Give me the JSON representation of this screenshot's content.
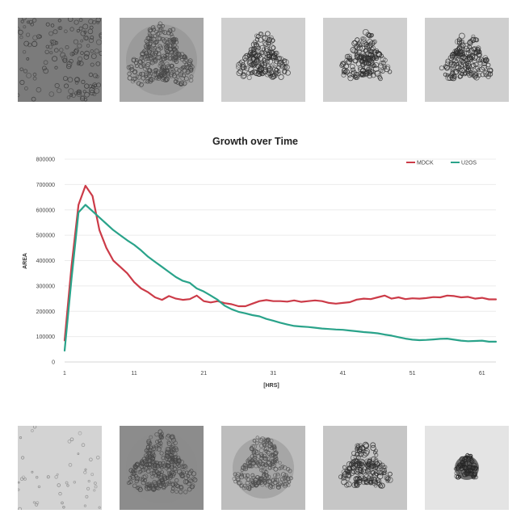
{
  "thumbnails": {
    "top": [
      {
        "icon": "scattered-cells-micrograph",
        "tone": "#7b7b7b"
      },
      {
        "icon": "dense-cell-disc-micrograph",
        "tone": "#a8a8a8"
      },
      {
        "icon": "cell-spheroid-micrograph",
        "tone": "#cfcfcf"
      },
      {
        "icon": "cell-spheroid-micrograph",
        "tone": "#cfcfcf"
      },
      {
        "icon": "cell-spheroid-micrograph",
        "tone": "#cfcfcf"
      }
    ],
    "bottom": [
      {
        "icon": "sparse-cells-micrograph",
        "tone": "#d3d3d3"
      },
      {
        "icon": "dense-cell-disc-micrograph",
        "tone": "#8c8c8c"
      },
      {
        "icon": "cell-disc-micrograph",
        "tone": "#bdbdbd"
      },
      {
        "icon": "cell-spheroid-micrograph",
        "tone": "#c6c6c6"
      },
      {
        "icon": "compact-spheroid-micrograph",
        "tone": "#e4e4e4"
      }
    ]
  },
  "chart_data": {
    "type": "line",
    "title": "Growth over Time",
    "xlabel": "[HRS]",
    "ylabel": "AREA",
    "xlim": [
      1,
      63
    ],
    "ylim": [
      0,
      800000
    ],
    "xticks": [
      1,
      11,
      21,
      31,
      41,
      51,
      61
    ],
    "yticks": [
      0,
      100000,
      200000,
      300000,
      400000,
      500000,
      600000,
      700000,
      800000
    ],
    "ytick_labels": [
      "0",
      "100000",
      "200000",
      "300000",
      "400000",
      "500000",
      "600000",
      "700000",
      "800000"
    ],
    "grid": "horizontal",
    "legend_position": "top-right",
    "x": [
      1,
      2,
      3,
      4,
      5,
      6,
      7,
      8,
      9,
      10,
      11,
      12,
      13,
      14,
      15,
      16,
      17,
      18,
      19,
      20,
      21,
      22,
      23,
      24,
      25,
      26,
      27,
      28,
      29,
      30,
      31,
      32,
      33,
      34,
      35,
      36,
      37,
      38,
      39,
      40,
      41,
      42,
      43,
      44,
      45,
      46,
      47,
      48,
      49,
      50,
      51,
      52,
      53,
      54,
      55,
      56,
      57,
      58,
      59,
      60,
      61,
      62,
      63
    ],
    "series": [
      {
        "name": "MDCK",
        "color": "#cc3b48",
        "values": [
          85000,
          380000,
          620000,
          695000,
          655000,
          520000,
          450000,
          400000,
          375000,
          350000,
          315000,
          290000,
          275000,
          255000,
          245000,
          260000,
          250000,
          245000,
          248000,
          262000,
          240000,
          235000,
          240000,
          232000,
          228000,
          220000,
          220000,
          230000,
          240000,
          244000,
          240000,
          240000,
          238000,
          243000,
          237000,
          240000,
          243000,
          240000,
          233000,
          230000,
          233000,
          236000,
          246000,
          250000,
          248000,
          255000,
          262000,
          250000,
          255000,
          248000,
          251000,
          250000,
          252000,
          256000,
          255000,
          262000,
          260000,
          255000,
          257000,
          250000,
          253000,
          247000,
          247000
        ]
      },
      {
        "name": "U2OS",
        "color": "#2aa38a",
        "values": [
          45000,
          330000,
          590000,
          620000,
          595000,
          570000,
          545000,
          520000,
          500000,
          480000,
          462000,
          440000,
          415000,
          395000,
          375000,
          355000,
          335000,
          320000,
          312000,
          290000,
          278000,
          262000,
          245000,
          222000,
          208000,
          198000,
          192000,
          185000,
          180000,
          170000,
          163000,
          155000,
          148000,
          142000,
          140000,
          138000,
          135000,
          132000,
          130000,
          128000,
          127000,
          124000,
          121000,
          118000,
          116000,
          113000,
          108000,
          104000,
          98000,
          92000,
          88000,
          86000,
          87000,
          89000,
          91000,
          92000,
          88000,
          84000,
          82000,
          83000,
          84000,
          80000,
          80000
        ]
      }
    ]
  }
}
